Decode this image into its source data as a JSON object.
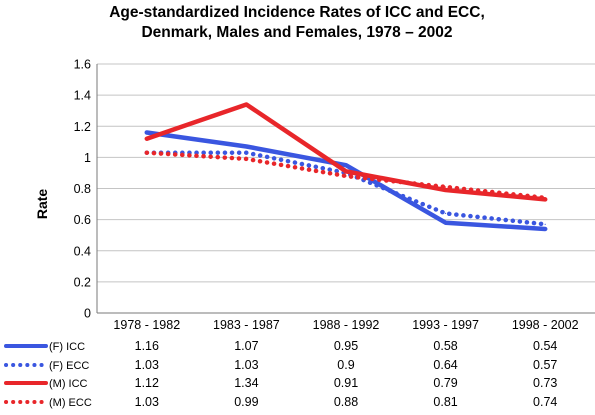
{
  "chart_data": {
    "type": "line",
    "title": [
      "Age-standardized Incidence Rates of ICC and ECC,",
      "Denmark, Males and Females, 1978 – 2002"
    ],
    "ylabel": "Rate",
    "xlabel": "",
    "categories": [
      "1978 - 1982",
      "1983 - 1987",
      "1988 - 1992",
      "1993 - 1997",
      "1998 - 2002"
    ],
    "ylim": [
      0,
      1.6
    ],
    "yticks": [
      "0",
      "0.2",
      "0.4",
      "0.6",
      "0.8",
      "1",
      "1.2",
      "1.4",
      "1.6"
    ],
    "grid": true,
    "legend_placement": "data-table-left",
    "series": [
      {
        "name": "(F) ICC",
        "values": [
          1.16,
          1.07,
          0.95,
          0.58,
          0.54
        ],
        "labels": [
          "1.16",
          "1.07",
          "0.95",
          "0.58",
          "0.54"
        ],
        "color": "#3a56e0",
        "style": "solid"
      },
      {
        "name": "(F) ECC",
        "values": [
          1.03,
          1.03,
          0.9,
          0.64,
          0.57
        ],
        "labels": [
          "1.03",
          "1.03",
          "0.9",
          "0.64",
          "0.57"
        ],
        "color": "#3a56e0",
        "style": "dotted"
      },
      {
        "name": "(M) ICC",
        "values": [
          1.12,
          1.34,
          0.91,
          0.79,
          0.73
        ],
        "labels": [
          "1.12",
          "1.34",
          "0.91",
          "0.79",
          "0.73"
        ],
        "color": "#e8262a",
        "style": "solid"
      },
      {
        "name": "(M) ECC",
        "values": [
          1.03,
          0.99,
          0.88,
          0.81,
          0.74
        ],
        "labels": [
          "1.03",
          "0.99",
          "0.88",
          "0.81",
          "0.74"
        ],
        "color": "#e8262a",
        "style": "dotted"
      }
    ]
  }
}
